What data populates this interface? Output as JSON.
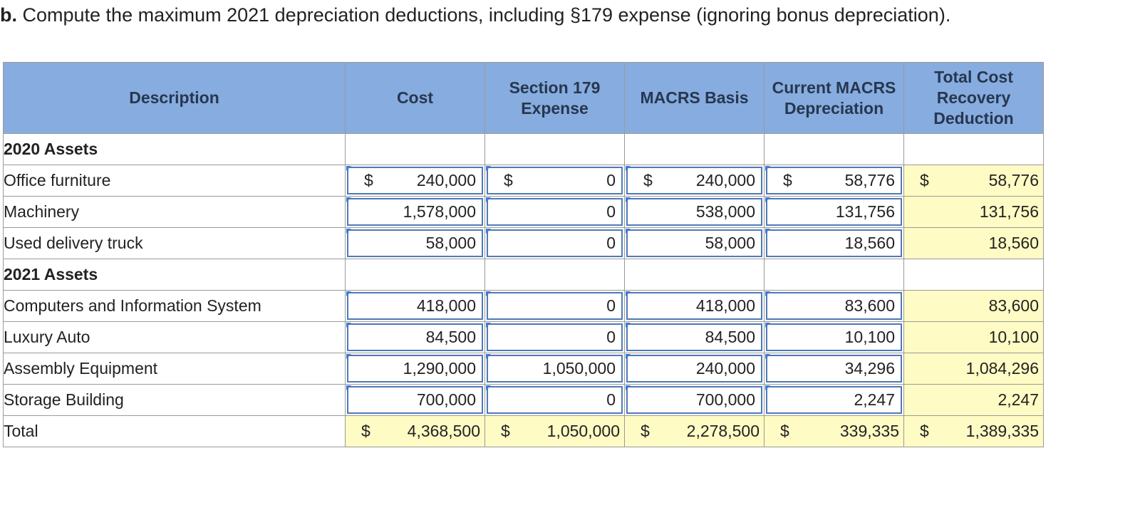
{
  "question": {
    "label": "b.",
    "text": " Compute the maximum 2021 depreciation deductions, including §179 expense (ignoring bonus depreciation)."
  },
  "table": {
    "headers": {
      "description": "Description",
      "cost": "Cost",
      "section179": "Section 179 Expense",
      "macrs_basis": "MACRS Basis",
      "current_macrs": "Current MACRS Depreciation",
      "total_recovery": "Total Cost Recovery Deduction"
    },
    "currency_symbol": "$",
    "sections": {
      "s2020": "2020 Assets",
      "s2021": "2021 Assets"
    },
    "rows": [
      {
        "description": "Office furniture",
        "cost": "240,000",
        "section179": "0",
        "macrs_basis": "240,000",
        "current_macrs": "58,776",
        "total_recovery": "58,776"
      },
      {
        "description": "Machinery",
        "cost": "1,578,000",
        "section179": "0",
        "macrs_basis": "538,000",
        "current_macrs": "131,756",
        "total_recovery": "131,756"
      },
      {
        "description": "Used delivery truck",
        "cost": "58,000",
        "section179": "0",
        "macrs_basis": "58,000",
        "current_macrs": "18,560",
        "total_recovery": "18,560"
      },
      {
        "description": "Computers and Information System",
        "cost": "418,000",
        "section179": "0",
        "macrs_basis": "418,000",
        "current_macrs": "83,600",
        "total_recovery": "83,600"
      },
      {
        "description": "Luxury Auto",
        "cost": "84,500",
        "section179": "0",
        "macrs_basis": "84,500",
        "current_macrs": "10,100",
        "total_recovery": "10,100"
      },
      {
        "description": "Assembly Equipment",
        "cost": "1,290,000",
        "section179": "1,050,000",
        "macrs_basis": "240,000",
        "current_macrs": "34,296",
        "total_recovery": "1,084,296"
      },
      {
        "description": "Storage Building",
        "cost": "700,000",
        "section179": "0",
        "macrs_basis": "700,000",
        "current_macrs": "2,247",
        "total_recovery": "2,247"
      }
    ],
    "total": {
      "description": "Total",
      "cost": "4,368,500",
      "section179": "1,050,000",
      "macrs_basis": "2,278,500",
      "current_macrs": "339,335",
      "total_recovery": "1,389,335"
    }
  },
  "colors": {
    "header_bg": "#87acdf",
    "computed_bg": "#fffbc4",
    "input_border": "#4f79b7",
    "input_marker": "#3d7ad6"
  }
}
